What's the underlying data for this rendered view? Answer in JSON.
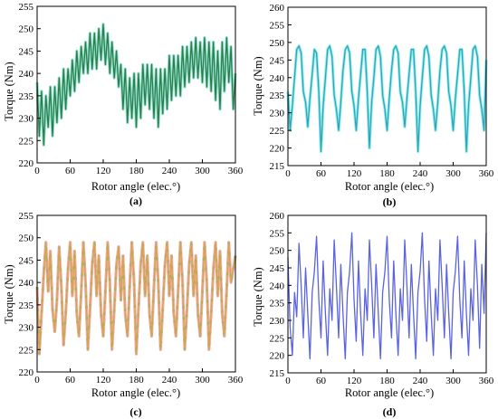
{
  "chart_data": [
    {
      "type": "line",
      "panel_label": "(a)",
      "xlabel": "Rotor angle (elec.°)",
      "ylabel": "Torque (Nm)",
      "xlim": [
        0,
        360
      ],
      "ylim": [
        220,
        255
      ],
      "xticks": [
        0,
        60,
        120,
        180,
        240,
        300,
        360
      ],
      "yticks": [
        220,
        225,
        230,
        235,
        240,
        245,
        250,
        255
      ],
      "grid": false,
      "colors": [
        "#2e7d4f",
        "#33c8a0"
      ],
      "x": [
        0,
        4,
        8,
        12,
        16,
        20,
        24,
        28,
        32,
        36,
        40,
        44,
        48,
        52,
        56,
        60,
        64,
        68,
        72,
        76,
        80,
        84,
        88,
        92,
        96,
        100,
        104,
        108,
        112,
        116,
        120,
        124,
        128,
        132,
        136,
        140,
        144,
        148,
        152,
        156,
        160,
        164,
        168,
        172,
        176,
        180,
        184,
        188,
        192,
        196,
        200,
        204,
        208,
        212,
        216,
        220,
        224,
        228,
        232,
        236,
        240,
        244,
        248,
        252,
        256,
        260,
        264,
        268,
        272,
        276,
        280,
        284,
        288,
        292,
        296,
        300,
        304,
        308,
        312,
        316,
        320,
        324,
        328,
        332,
        336,
        340,
        344,
        348,
        352,
        356,
        360
      ],
      "series": [
        {
          "values": [
            238,
            226,
            236,
            224,
            235,
            228,
            237,
            226,
            237,
            229,
            239,
            230,
            241,
            232,
            241,
            235,
            243,
            236,
            245,
            238,
            246,
            240,
            247,
            240,
            249,
            241,
            249,
            241,
            250,
            243,
            251,
            242,
            249,
            240,
            247,
            239,
            245,
            237,
            242,
            232,
            241,
            229,
            239,
            230,
            240,
            228,
            240,
            230,
            242,
            233,
            242,
            232,
            242,
            230,
            241,
            228,
            241,
            231,
            241,
            232,
            244,
            234,
            244,
            235,
            244,
            235,
            246,
            237,
            246,
            238,
            247,
            239,
            248,
            239,
            247,
            238,
            248,
            237,
            247,
            236,
            247,
            234,
            245,
            232,
            247,
            236,
            248,
            238,
            246,
            232,
            240
          ]
        }
      ]
    },
    {
      "type": "line",
      "panel_label": "(b)",
      "xlabel": "Rotor angle (elec.°)",
      "ylabel": "Torque (Nm)",
      "xlim": [
        0,
        360
      ],
      "ylim": [
        215,
        260
      ],
      "xticks": [
        0,
        60,
        120,
        180,
        240,
        300,
        360
      ],
      "yticks": [
        215,
        220,
        225,
        230,
        235,
        240,
        245,
        250,
        255,
        260
      ],
      "grid": false,
      "colors": [
        "#3aa0b4",
        "#22e6e6"
      ],
      "x": [
        0,
        4,
        8,
        12,
        16,
        20,
        24,
        28,
        32,
        36,
        40,
        44,
        48,
        52,
        56,
        60,
        64,
        68,
        72,
        76,
        80,
        84,
        88,
        92,
        96,
        100,
        104,
        108,
        112,
        116,
        120,
        124,
        128,
        132,
        136,
        140,
        144,
        148,
        152,
        156,
        160,
        164,
        168,
        172,
        176,
        180,
        184,
        188,
        192,
        196,
        200,
        204,
        208,
        212,
        216,
        220,
        224,
        228,
        232,
        236,
        240,
        244,
        248,
        252,
        256,
        260,
        264,
        268,
        272,
        276,
        280,
        284,
        288,
        292,
        296,
        300,
        304,
        308,
        312,
        316,
        320,
        324,
        328,
        332,
        336,
        340,
        344,
        348,
        352,
        356,
        360
      ],
      "series": [
        {
          "values": [
            236,
            225,
            232,
            240,
            248,
            249,
            247,
            236,
            233,
            226,
            234,
            241,
            248,
            247,
            236,
            219,
            232,
            240,
            248,
            249,
            246,
            235,
            231,
            225,
            233,
            242,
            248,
            249,
            247,
            236,
            232,
            225,
            234,
            241,
            248,
            248,
            236,
            220,
            233,
            240,
            248,
            249,
            246,
            235,
            231,
            225,
            234,
            242,
            248,
            249,
            247,
            236,
            233,
            226,
            234,
            241,
            248,
            248,
            236,
            219,
            232,
            240,
            248,
            249,
            246,
            235,
            231,
            225,
            233,
            242,
            248,
            249,
            247,
            236,
            232,
            225,
            234,
            241,
            248,
            248,
            236,
            219,
            232,
            240,
            248,
            249,
            246,
            235,
            231,
            225,
            245
          ]
        }
      ]
    },
    {
      "type": "line",
      "panel_label": "(c)",
      "xlabel": "Rotor angle (elec.°)",
      "ylabel": "Torque (Nm)",
      "xlim": [
        0,
        360
      ],
      "ylim": [
        220,
        255
      ],
      "xticks": [
        0,
        60,
        120,
        180,
        240,
        300,
        360
      ],
      "yticks": [
        220,
        225,
        230,
        235,
        240,
        245,
        250,
        255
      ],
      "grid": false,
      "colors": [
        "#d9a24a",
        "#e0706a",
        "#4ec75a"
      ],
      "x": [
        0,
        4,
        8,
        12,
        16,
        20,
        24,
        28,
        32,
        36,
        40,
        44,
        48,
        52,
        56,
        60,
        64,
        68,
        72,
        76,
        80,
        84,
        88,
        92,
        96,
        100,
        104,
        108,
        112,
        116,
        120,
        124,
        128,
        132,
        136,
        140,
        144,
        148,
        152,
        156,
        160,
        164,
        168,
        172,
        176,
        180,
        184,
        188,
        192,
        196,
        200,
        204,
        208,
        212,
        216,
        220,
        224,
        228,
        232,
        236,
        240,
        244,
        248,
        252,
        256,
        260,
        264,
        268,
        272,
        276,
        280,
        284,
        288,
        292,
        296,
        300,
        304,
        308,
        312,
        316,
        320,
        324,
        328,
        332,
        336,
        340,
        344,
        348,
        352,
        356,
        360
      ],
      "series": [
        {
          "values": [
            239,
            224,
            233,
            242,
            249,
            238,
            247,
            234,
            229,
            236,
            248,
            239,
            226,
            233,
            243,
            249,
            237,
            247,
            233,
            228,
            238,
            249,
            240,
            225,
            234,
            244,
            249,
            237,
            246,
            233,
            228,
            238,
            249,
            240,
            225,
            234,
            244,
            248,
            236,
            246,
            233,
            228,
            239,
            249,
            240,
            224,
            234,
            244,
            249,
            237,
            246,
            233,
            228,
            239,
            249,
            240,
            225,
            234,
            244,
            249,
            237,
            246,
            233,
            228,
            238,
            249,
            240,
            225,
            234,
            244,
            249,
            237,
            246,
            233,
            228,
            238,
            249,
            240,
            225,
            233,
            243,
            249,
            237,
            247,
            233,
            228,
            238,
            249,
            240,
            243,
            246
          ]
        }
      ]
    },
    {
      "type": "line",
      "panel_label": "(d)",
      "xlabel": "Rotor angle (elec.°)",
      "ylabel": "Torque (Nm)",
      "xlim": [
        0,
        360
      ],
      "ylim": [
        215,
        260
      ],
      "xticks": [
        0,
        60,
        120,
        180,
        240,
        300,
        360
      ],
      "yticks": [
        215,
        220,
        225,
        230,
        235,
        240,
        245,
        250,
        255,
        260
      ],
      "grid": false,
      "colors": [
        "#5a63e0"
      ],
      "x": [
        0,
        4,
        8,
        12,
        16,
        20,
        24,
        28,
        32,
        36,
        40,
        44,
        48,
        52,
        56,
        60,
        64,
        68,
        72,
        76,
        80,
        84,
        88,
        92,
        96,
        100,
        104,
        108,
        112,
        116,
        120,
        124,
        128,
        132,
        136,
        140,
        144,
        148,
        152,
        156,
        160,
        164,
        168,
        172,
        176,
        180,
        184,
        188,
        192,
        196,
        200,
        204,
        208,
        212,
        216,
        220,
        224,
        228,
        232,
        236,
        240,
        244,
        248,
        252,
        256,
        260,
        264,
        268,
        272,
        276,
        280,
        284,
        288,
        292,
        296,
        300,
        304,
        308,
        312,
        316,
        320,
        324,
        328,
        332,
        336,
        340,
        344,
        348,
        352,
        356,
        360
      ],
      "series": [
        {
          "values": [
            248,
            228,
            220,
            238,
            231,
            252,
            240,
            225,
            245,
            232,
            219,
            238,
            244,
            254,
            236,
            225,
            247,
            232,
            220,
            239,
            230,
            253,
            240,
            225,
            246,
            232,
            219,
            238,
            244,
            255,
            236,
            224,
            247,
            232,
            220,
            239,
            230,
            253,
            240,
            225,
            246,
            232,
            219,
            238,
            244,
            254,
            236,
            225,
            247,
            232,
            220,
            239,
            230,
            253,
            240,
            225,
            246,
            232,
            219,
            238,
            244,
            255,
            236,
            224,
            247,
            232,
            220,
            239,
            230,
            253,
            240,
            225,
            246,
            232,
            219,
            238,
            244,
            254,
            236,
            225,
            247,
            232,
            220,
            239,
            230,
            253,
            240,
            222,
            246,
            232,
            255
          ]
        }
      ]
    }
  ]
}
